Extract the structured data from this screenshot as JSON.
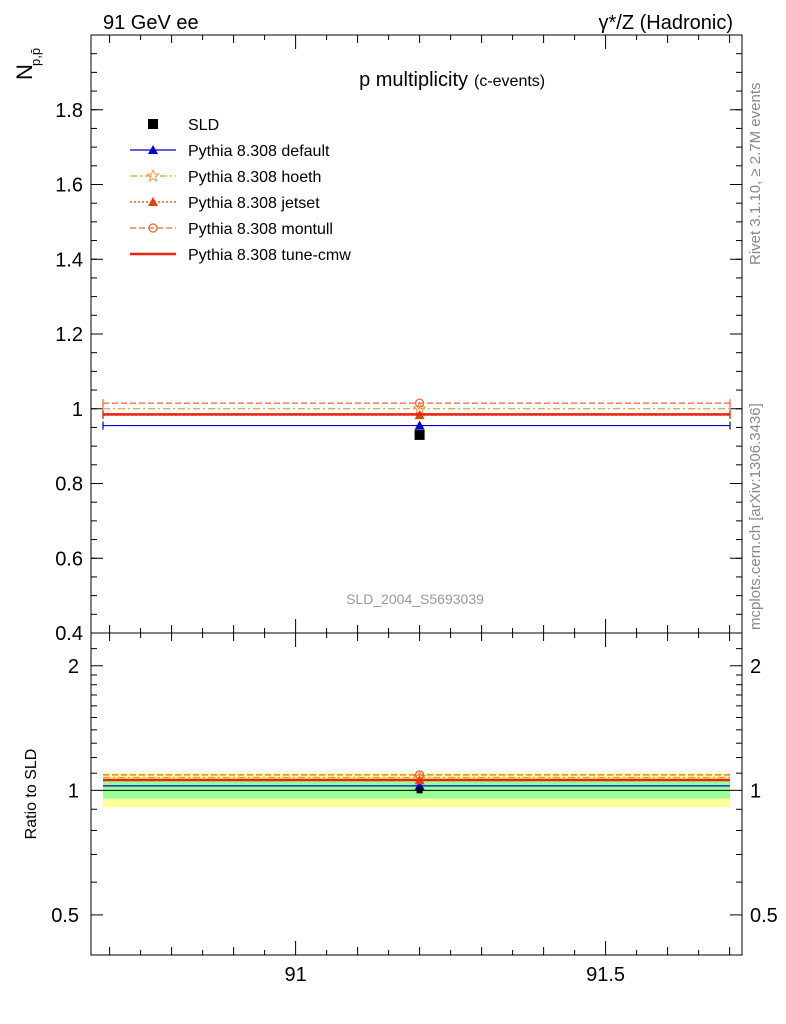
{
  "header": {
    "left": "91 GeV ee",
    "right": "γ*/Z (Hadronic)"
  },
  "side_texts": {
    "rivet": "Rivet 3.1.10, ≥ 2.7M events",
    "mcplots": "mcplots.cern.ch [arXiv:1306.3436]"
  },
  "watermark": "SLD_2004_S5693039",
  "chart_data": [
    {
      "type": "scatter",
      "title": "p multiplicity",
      "subtitle": "(c-events)",
      "ylabel": "N",
      "ylabel_sub": "p,p̄",
      "xlim": [
        90.67,
        91.72
      ],
      "ylim": [
        0.4,
        2.0
      ],
      "y_ticks": [
        0.4,
        0.6,
        0.8,
        1.0,
        1.2,
        1.4,
        1.6,
        1.8
      ],
      "y_tick_labels": [
        "0.4",
        "0.6",
        "0.8",
        "1",
        "1.2",
        "1.4",
        "1.6",
        "1.8"
      ],
      "grid": false,
      "legend_position": "top-left",
      "data": {
        "name": "SLD",
        "x": 91.2,
        "y": 0.93,
        "color": "#000000"
      },
      "series": [
        {
          "name": "Pythia 8.308 default",
          "x": 91.2,
          "y": 0.955,
          "color": "#0000cc",
          "style": "solid",
          "marker": "triangle"
        },
        {
          "name": "Pythia 8.308 hoeth",
          "x": 91.2,
          "y": 1.0,
          "color": "#ee9944",
          "style": "dashdot",
          "marker": "star"
        },
        {
          "name": "Pythia 8.308 jetset",
          "x": 91.2,
          "y": 0.983,
          "color": "#dd4411",
          "style": "dotted",
          "marker": "triangle"
        },
        {
          "name": "Pythia 8.308 montull",
          "x": 91.2,
          "y": 1.015,
          "color": "#ee6633",
          "style": "dashed",
          "marker": "circle-open"
        },
        {
          "name": "Pythia 8.308 tune-cmw",
          "x": 91.2,
          "y": 0.985,
          "color": "#ee2211",
          "style": "solid-thick",
          "marker": "none"
        }
      ]
    },
    {
      "type": "scatter",
      "ylabel": "Ratio to SLD",
      "xlim": [
        90.67,
        91.72
      ],
      "ylim": [
        0.4,
        2.4
      ],
      "log_y": true,
      "y_tick_labels": [
        "0.5",
        "1",
        "2"
      ],
      "y_ticks": [
        0.5,
        1,
        2
      ],
      "x_ticks": [
        91,
        91.5
      ],
      "x_tick_labels": [
        "91",
        "91.5"
      ],
      "bands": [
        {
          "name": "yellow",
          "low": 0.91,
          "high": 1.1,
          "color": "#ffff99"
        },
        {
          "name": "green",
          "low": 0.955,
          "high": 1.055,
          "color": "#99ff99"
        }
      ],
      "ratios": [
        {
          "name": "Pythia 8.308 default",
          "y": 1.025
        },
        {
          "name": "Pythia 8.308 hoeth",
          "y": 1.074
        },
        {
          "name": "Pythia 8.308 jetset",
          "y": 1.057
        },
        {
          "name": "Pythia 8.308 montull",
          "y": 1.09
        },
        {
          "name": "Pythia 8.308 tune-cmw",
          "y": 1.059
        }
      ]
    }
  ]
}
